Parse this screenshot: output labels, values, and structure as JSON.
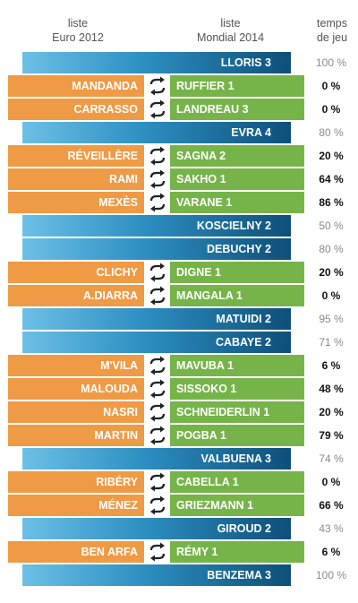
{
  "header": {
    "euro_line1": "liste",
    "euro_line2": "Euro 2012",
    "mondial_line1": "liste",
    "mondial_line2": "Mondial 2014",
    "temps_line1": "temps",
    "temps_line2": "de jeu"
  },
  "colors": {
    "kept_bar_start": "#6cc0e6",
    "kept_bar_end": "#0e4f78",
    "euro_replaced": "#ef9a45",
    "mondial_new": "#76b44a"
  },
  "icons": {
    "swap": "swap-arrows-icon"
  },
  "rows": [
    {
      "type": "kept",
      "mondial": "LLORIS 3",
      "pct": "100 %"
    },
    {
      "type": "swap",
      "euro": "MANDANDA",
      "mondial": "RUFFIER 1",
      "pct": "0 %"
    },
    {
      "type": "swap",
      "euro": "CARRASSO",
      "mondial": "LANDREAU 3",
      "pct": "0 %"
    },
    {
      "type": "kept",
      "mondial": "EVRA 4",
      "pct": "80 %"
    },
    {
      "type": "swap",
      "euro": "RÉVEILLÈRE",
      "mondial": "SAGNA 2",
      "pct": "20 %"
    },
    {
      "type": "swap",
      "euro": "RAMI",
      "mondial": "SAKHO 1",
      "pct": "64 %"
    },
    {
      "type": "swap",
      "euro": "MEXÈS",
      "mondial": "VARANE 1",
      "pct": "86 %"
    },
    {
      "type": "kept",
      "mondial": "KOSCIELNY 2",
      "pct": "50 %"
    },
    {
      "type": "kept",
      "mondial": "DEBUCHY 2",
      "pct": "80 %"
    },
    {
      "type": "swap",
      "euro": "CLICHY",
      "mondial": "DIGNE 1",
      "pct": "20 %"
    },
    {
      "type": "swap",
      "euro": "A.DIARRA",
      "mondial": "MANGALA 1",
      "pct": "0 %"
    },
    {
      "type": "kept",
      "mondial": "MATUIDI 2",
      "pct": "95 %"
    },
    {
      "type": "kept",
      "mondial": "CABAYE 2",
      "pct": "71 %"
    },
    {
      "type": "swap",
      "euro": "M'VILA",
      "mondial": "MAVUBA 1",
      "pct": "6 %"
    },
    {
      "type": "swap",
      "euro": "MALOUDA",
      "mondial": "SISSOKO 1",
      "pct": "48 %"
    },
    {
      "type": "swap",
      "euro": "NASRI",
      "mondial": "SCHNEIDERLIN 1",
      "pct": "20 %"
    },
    {
      "type": "swap",
      "euro": "MARTIN",
      "mondial": "POGBA 1",
      "pct": "79 %"
    },
    {
      "type": "kept",
      "mondial": "VALBUENA 3",
      "pct": "74 %"
    },
    {
      "type": "swap",
      "euro": "RIBÉRY",
      "mondial": "CABELLA 1",
      "pct": "0 %"
    },
    {
      "type": "swap",
      "euro": "MÉNEZ",
      "mondial": "GRIEZMANN 1",
      "pct": "66 %"
    },
    {
      "type": "kept",
      "mondial": "GIROUD 2",
      "pct": "43 %"
    },
    {
      "type": "swap",
      "euro": "BEN ARFA",
      "mondial": "RÉMY 1",
      "pct": "6 %"
    },
    {
      "type": "kept",
      "mondial": "BENZEMA 3",
      "pct": "100 %"
    }
  ]
}
